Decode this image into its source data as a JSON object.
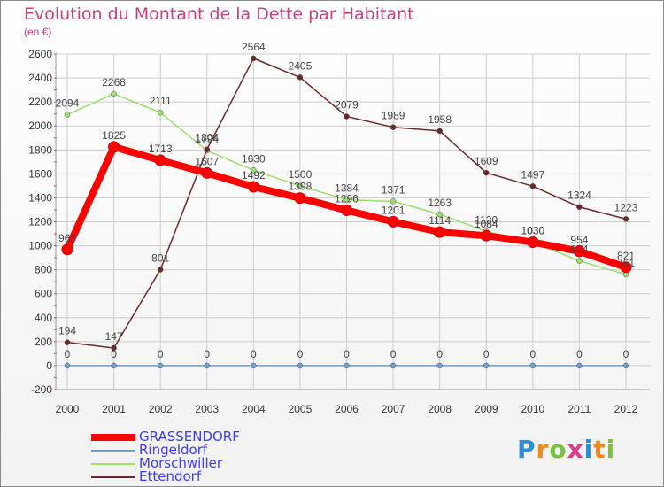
{
  "title": "Evolution du Montant de la Dette par Habitant",
  "unit_label": "(en €)",
  "logo_text": "Proxiti",
  "colors": {
    "title": "#c8407a",
    "grassendorf": "#ff0000",
    "ringeldorf": "#6f9fd0",
    "morschwiller": "#99e06a",
    "ettendorf": "#6b2a2a",
    "grid": "#cccccc",
    "legend_text": "#3a3aff"
  },
  "chart_data": {
    "type": "line",
    "title": "Evolution du Montant de la Dette par Habitant",
    "ylabel": "(en €)",
    "x": [
      "2000",
      "2001",
      "2002",
      "2003",
      "2004",
      "2005",
      "2006",
      "2007",
      "2008",
      "2009",
      "2010",
      "2011",
      "2012"
    ],
    "ylim": [
      -200,
      2600
    ],
    "yticks": [
      "2600",
      "2400",
      "2200",
      "2000",
      "1800",
      "1600",
      "1400",
      "1200",
      "1000",
      "800",
      "600",
      "400",
      "200",
      "0",
      "-200"
    ],
    "grid": true,
    "legend_position": "bottom",
    "series": [
      {
        "name": "GRASSENDORF",
        "values": [
          969,
          1825,
          1713,
          1607,
          1492,
          1398,
          1296,
          1201,
          1114,
          1084,
          1030,
          954,
          821
        ],
        "labels": [
          "969",
          "1825",
          "1713",
          "1607",
          "1492",
          "1398",
          "1296",
          "1201",
          "1114",
          "1084",
          "1030",
          "954",
          "821"
        ]
      },
      {
        "name": "Ringeldorf",
        "values": [
          0,
          0,
          0,
          0,
          0,
          0,
          0,
          0,
          0,
          0,
          0,
          0,
          0
        ],
        "labels": [
          "0",
          "0",
          "0",
          "0",
          "0",
          "0",
          "0",
          "0",
          "0",
          "0",
          "0",
          "0",
          "0"
        ]
      },
      {
        "name": "Morschwiller",
        "values": [
          2094,
          2268,
          2111,
          1794,
          1630,
          1500,
          1384,
          1371,
          1263,
          1120,
          1030,
          874,
          761
        ],
        "labels": [
          "2094",
          "2268",
          "2111",
          "1794",
          "1630",
          "1500",
          "1384",
          "1371",
          "1263",
          "1120",
          "1030",
          "874",
          "761"
        ]
      },
      {
        "name": "Ettendorf",
        "values": [
          194,
          147,
          801,
          1804,
          2564,
          2405,
          2079,
          1989,
          1958,
          1609,
          1497,
          1324,
          1223
        ],
        "labels": [
          "194",
          "147",
          "801",
          "1804",
          "2564",
          "2405",
          "2079",
          "1989",
          "1958",
          "1609",
          "1497",
          "1324",
          "1223"
        ]
      }
    ]
  }
}
